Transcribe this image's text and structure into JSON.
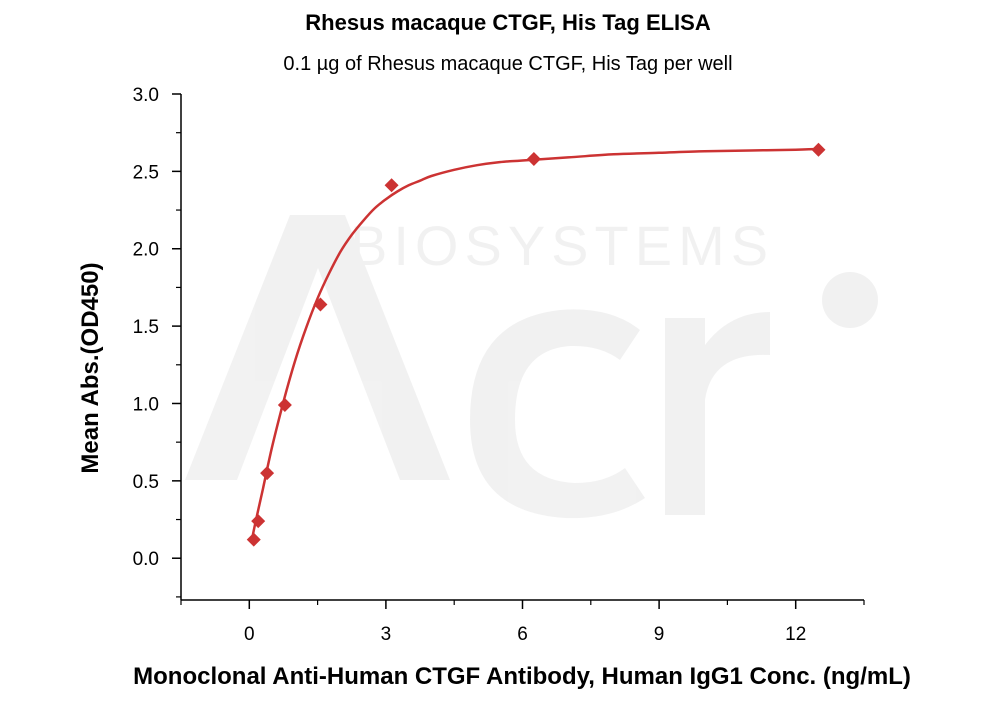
{
  "chart_data": {
    "type": "scatter",
    "title": "Rhesus macaque CTGF, His Tag ELISA",
    "subtitle": "0.1 µg of Rhesus macaque CTGF, His Tag per well",
    "xlabel": "Monoclonal Anti-Human CTGF Antibody, Human IgG1 Conc. (ng/mL)",
    "ylabel": "Mean Abs.(OD450)",
    "xlim": [
      -1.5,
      13.5
    ],
    "ylim": [
      -0.27,
      3.0
    ],
    "xticks": [
      0,
      3,
      6,
      9,
      12
    ],
    "xtick_labels": [
      "0",
      "3",
      "6",
      "9",
      "12"
    ],
    "yticks": [
      0.0,
      0.5,
      1.0,
      1.5,
      2.0,
      2.5,
      3.0
    ],
    "ytick_labels": [
      "0.0",
      "0.5",
      "1.0",
      "1.5",
      "2.0",
      "2.5",
      "3.0"
    ],
    "grid": false,
    "legend": "none",
    "color": "#cc3333",
    "series": [
      {
        "marker": "diamond",
        "x": [
          0.098,
          0.195,
          0.391,
          0.781,
          1.5625,
          3.125,
          6.25,
          12.5
        ],
        "y": [
          0.12,
          0.24,
          0.55,
          0.99,
          1.64,
          2.41,
          2.58,
          2.64
        ]
      }
    ],
    "fit": {
      "type": "curve",
      "x": [
        0.05,
        0.15,
        0.3,
        0.5,
        0.75,
        1.0,
        1.25,
        1.5,
        1.75,
        2.0,
        2.25,
        2.5,
        2.75,
        3.0,
        3.25,
        3.5,
        3.75,
        4.0,
        4.5,
        5.0,
        5.5,
        6.0,
        7.0,
        8.0,
        9.0,
        10.0,
        11.0,
        12.0,
        12.5
      ],
      "y": [
        0.11,
        0.25,
        0.45,
        0.72,
        1.01,
        1.27,
        1.49,
        1.68,
        1.84,
        1.98,
        2.09,
        2.18,
        2.26,
        2.32,
        2.37,
        2.41,
        2.44,
        2.47,
        2.51,
        2.54,
        2.56,
        2.57,
        2.59,
        2.61,
        2.62,
        2.63,
        2.635,
        2.64,
        2.645
      ]
    }
  }
}
